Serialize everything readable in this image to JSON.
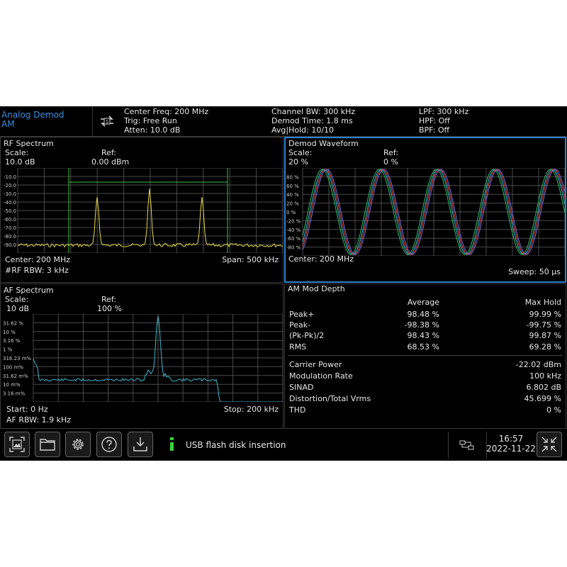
{
  "header": {
    "mode_line1": "Analog Demod",
    "mode_line2": "AM",
    "center_freq": "Center Freq: 200 MHz",
    "trig": "Trig: Free Run",
    "atten": "Atten: 10.0 dB",
    "channel_bw": "Channel BW: 300 kHz",
    "demod_time": "Demod Time: 1.8 ms",
    "avg_hold": "Avg|Hold: 10/10",
    "lpf": "LPF: 300 kHz",
    "hpf": "HPF: Off",
    "bpf": "BPF: Off"
  },
  "rf": {
    "title": "RF Spectrum",
    "scale_label": "Scale:",
    "scale_value": "10.0 dB",
    "ref_label": "Ref:",
    "ref_value": "0.00 dBm",
    "center": "Center: 200 MHz",
    "span": "Span: 500 kHz",
    "rbw": "#RF RBW: 3 kHz",
    "ticks": [
      "-10.0",
      "-20.0",
      "-30.0",
      "-40.0",
      "-50.0",
      "-60.0",
      "-70.0",
      "-80.0",
      "-90.0"
    ],
    "trace_color": "#e8d84a"
  },
  "demod": {
    "title": "Demod Waveform",
    "scale_label": "Scale:",
    "scale_value": "20 %",
    "ref_label": "Ref:",
    "ref_value": "0 %",
    "center": "Center: 200 MHz",
    "sweep": "Sweep: 50 µs",
    "ticks": [
      "80 %",
      "60 %",
      "40 %",
      "20 %",
      "0 %",
      "-20 %",
      "-40 %",
      "-60 %",
      "-80 %"
    ]
  },
  "af": {
    "title": "AF Spectrum",
    "scale_label": "Scale:",
    "scale_value": "10 dB",
    "ref_label": "Ref:",
    "ref_value": "100 %",
    "start": "Start: 0 Hz",
    "stop": "Stop: 200 kHz",
    "rbw": "AF RBW: 1.9 kHz",
    "ticks": [
      "31.62 %",
      "10 %",
      "3.16 %",
      "1 %",
      "316.23 m%",
      "100 m%",
      "31.62 m%",
      "10 m%",
      "3.16 m%"
    ],
    "trace_color": "#3fb6d0"
  },
  "mod": {
    "title": "AM Mod Depth",
    "col_average": "Average",
    "col_max": "Max Hold",
    "rows": [
      {
        "label": "Peak+",
        "avg": "98.48 %",
        "max": "99.99 %"
      },
      {
        "label": "Peak-",
        "avg": "-98.38 %",
        "max": "-99.75 %"
      },
      {
        "label": "(Pk-Pk)/2",
        "avg": "98.43 %",
        "max": "99.87 %"
      },
      {
        "label": "RMS",
        "avg": "68.53 %",
        "max": "69.28 %"
      }
    ],
    "metrics": [
      {
        "label": "Carrier Power",
        "value": "-22.02 dBm"
      },
      {
        "label": "Modulation Rate",
        "value": "100 kHz"
      },
      {
        "label": "SINAD",
        "value": "6.802 dB"
      },
      {
        "label": "Distortion/Total Vrms",
        "value": "45.699 %"
      },
      {
        "label": "THD",
        "value": "0 %"
      }
    ]
  },
  "footer": {
    "status_message": "USB flash disk insertion",
    "time": "16:57",
    "date": "2022-11-22"
  },
  "icons": [
    "screenshot-icon",
    "folder-icon",
    "gear-icon",
    "help-icon",
    "save-download-icon",
    "info-icon",
    "network-icon",
    "fullscreen-toggle-icon",
    "sync-icon"
  ]
}
